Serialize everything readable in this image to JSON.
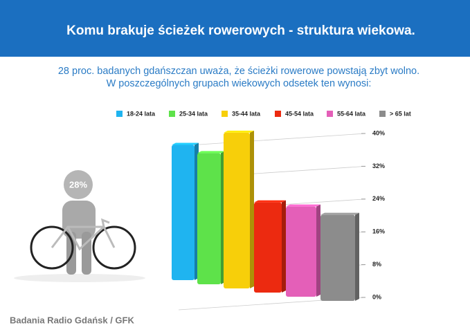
{
  "header": {
    "title": "Komu brakuje ścieżek rowerowych - struktura wiekowa."
  },
  "subtitle": [
    "28 proc. badanych gdańszczan uważa, że ścieżki rowerowe powstają zbyt wolno.",
    "W poszczególnych grupach wiekowych odsetek ten wynosi:"
  ],
  "figure_label": "28%",
  "footer": "Badania Radio Gdańsk / GFK",
  "chart_data": {
    "type": "bar",
    "categories": [
      "18-24 lata",
      "25-34 lata",
      "35-44 lata",
      "45-54 lata",
      "55-64 lata",
      "> 65 lat"
    ],
    "values": [
      33,
      32,
      38,
      22,
      22,
      21
    ],
    "colors": [
      "#1fb4f0",
      "#5ee24a",
      "#f7cf0a",
      "#ec2a10",
      "#e45fb8",
      "#8c8c8c"
    ],
    "ylim": [
      0,
      40
    ],
    "yticks": [
      {
        "value": 0,
        "label": "0%"
      },
      {
        "value": 8,
        "label": "8%"
      },
      {
        "value": 16,
        "label": "16%"
      },
      {
        "value": 24,
        "label": "24%"
      },
      {
        "value": 32,
        "label": "32%"
      },
      {
        "value": 40,
        "label": "40%"
      }
    ],
    "grid": true,
    "legend": "top"
  }
}
